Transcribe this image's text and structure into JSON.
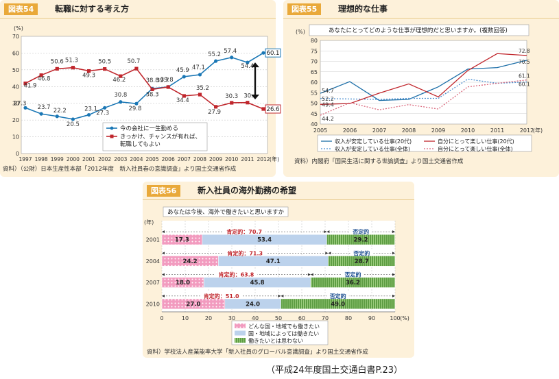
{
  "chart_data": [
    {
      "type": "line",
      "figure_label": "図表54",
      "title": "転職に対する考え方",
      "yunit": "(%)",
      "xunit": "(年)",
      "ylim": [
        0,
        70
      ],
      "yticks": [
        0,
        10,
        20,
        30,
        40,
        50,
        60,
        70
      ],
      "x": [
        "1997",
        "1998",
        "1999",
        "2000",
        "2001",
        "2002",
        "2003",
        "2004",
        "2005",
        "2006",
        "2007",
        "2008",
        "2009",
        "2010",
        "2011",
        "2012"
      ],
      "series": [
        {
          "name": "今の会社に一生勤める",
          "color": "#1a77b5",
          "marker": "circle",
          "values": [
            27.3,
            23.7,
            22.2,
            20.5,
            23.1,
            27.3,
            30.8,
            29.8,
            38.8,
            39.8,
            45.9,
            47.1,
            55.2,
            57.4,
            54.4,
            60.1
          ]
        },
        {
          "name": "きっかけ、チャンスが有れば、",
          "name2": "転職してもよい",
          "color": "#c0272d",
          "marker": "square",
          "values": [
            41.9,
            46.8,
            50.6,
            51.3,
            49.3,
            50.5,
            46.2,
            50.7,
            38.3,
            39.7,
            34.4,
            35.2,
            27.9,
            30.3,
            30.4,
            26.6
          ]
        }
      ],
      "source": "資料）（公財）日本生産性本部「2012年度　新入社員春の意識調査」より国土交通省作成"
    },
    {
      "type": "line",
      "figure_label": "図表55",
      "title": "理想的な仕事",
      "question": "あなたにとってどのような仕事が理想的だと思いますか。(複数回答)",
      "yunit": "(%)",
      "xunit": "(年)",
      "ylim": [
        40,
        80
      ],
      "yticks": [
        40,
        45,
        50,
        55,
        60,
        65,
        70,
        75,
        80
      ],
      "x": [
        "2005",
        "2006",
        "2007",
        "2008",
        "2009",
        "2010",
        "2011",
        "2012"
      ],
      "series": [
        {
          "name": "収入が安定している仕事(20代)",
          "color": "#1d6fa8",
          "dash": "",
          "values": [
            54.7,
            60.3,
            51.3,
            51.8,
            57.8,
            66.3,
            67.0,
            70.5
          ]
        },
        {
          "name": "収入が安定している仕事(全体)",
          "color": "#4b8fd0",
          "dash": "2,2",
          "values": [
            52.2,
            52.0,
            51.8,
            52.3,
            52.3,
            61.5,
            59.5,
            60.1
          ]
        },
        {
          "name": "自分にとって楽しい仕事(20代)",
          "color": "#c0272d",
          "dash": "",
          "values": [
            49.4,
            49.8,
            54.8,
            59.2,
            53.0,
            65.6,
            73.7,
            72.8
          ]
        },
        {
          "name": "自分にとって楽しい仕事(全体)",
          "color": "#d9657a",
          "dash": "2,2",
          "values": [
            44.2,
            50.2,
            46.8,
            49.3,
            47.2,
            57.8,
            59.5,
            61.1
          ]
        }
      ],
      "point_labels": {
        "start": [
          "54.7",
          "52.2",
          "49.4",
          "44.2"
        ],
        "end": [
          "72.8",
          "70.5",
          "61.1",
          "60.1"
        ]
      },
      "source": "資料）内閣府「国民生活に関する世論調査」より国土交通省作成"
    },
    {
      "type": "bar",
      "orientation": "horizontal-stacked",
      "figure_label": "図表56",
      "title": "新入社員の海外勤務の希望",
      "question": "あなたは今後、海外で働きたいと思いますか",
      "yunit": "(年)",
      "xunit": "(%)",
      "xlim": [
        0,
        100
      ],
      "xticks": [
        0,
        10,
        20,
        30,
        40,
        50,
        60,
        70,
        80,
        90,
        100
      ],
      "categories": [
        "2001",
        "2004",
        "2007",
        "2010"
      ],
      "series": [
        {
          "name": "どんな国・地域でも働きたい",
          "color": "#f4a9c8",
          "values": [
            17.3,
            24.2,
            18.0,
            27.0
          ]
        },
        {
          "name": "国・地域によっては働きたい",
          "color": "#bcd2ec",
          "values": [
            53.4,
            47.1,
            45.8,
            24.0
          ]
        },
        {
          "name": "働きたいとは思わない",
          "color": "#6aa84f",
          "values": [
            29.2,
            28.7,
            36.2,
            49.0
          ]
        }
      ],
      "positive_labels": [
        "肯定的：70.7",
        "肯定的：71.3",
        "肯定的：63.8",
        "肯定的：51.0"
      ],
      "negative_label": "否定的",
      "source": "資料）学校法人産業能率大学「新入社員のグローバル意識調査」より国土交通省作成"
    }
  ],
  "citation": "（平成24年度国土交通白書P.23）"
}
